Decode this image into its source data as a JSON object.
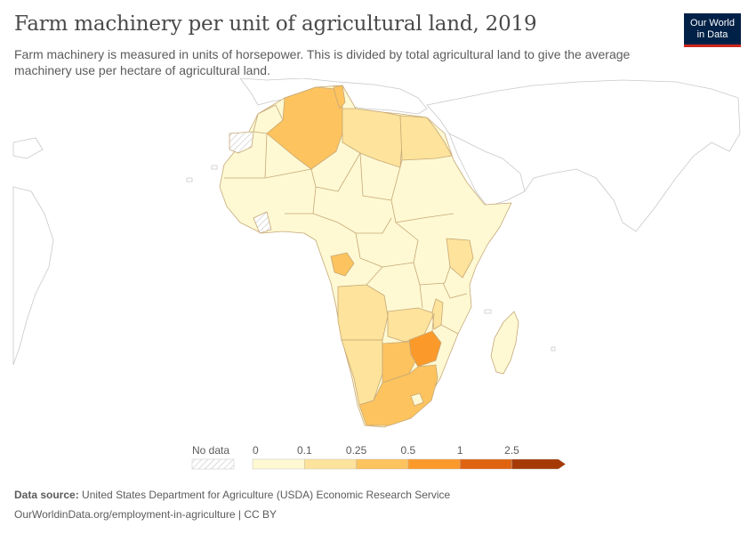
{
  "header": {
    "title": "Farm machinery per unit of agricultural land, 2019",
    "subtitle": "Farm machinery is measured in units of horsepower. This is divided by total agricultural land to give the average machinery use per hectare of agricultural land."
  },
  "logo": {
    "line1": "Our World",
    "line2": "in Data"
  },
  "legend": {
    "no_data_label": "No data",
    "ticks": [
      "0",
      "0.1",
      "0.25",
      "0.5",
      "1",
      "2.5"
    ],
    "colors": [
      "#fef9d3",
      "#fde39b",
      "#fdc35e",
      "#fb9a2b",
      "#e06312",
      "#a53a06"
    ]
  },
  "map_colors": {
    "border": "#c6a877",
    "outside_fill": "#ffffff",
    "outside_stroke": "#c9c9c9",
    "no_data_hatch": "#cfcfcf"
  },
  "footer": {
    "source_label": "Data source:",
    "source_text": "United States Department for Agriculture (USDA) Economic Research Service",
    "link": "OurWorldinData.org/employment-in-agriculture | CC BY"
  }
}
